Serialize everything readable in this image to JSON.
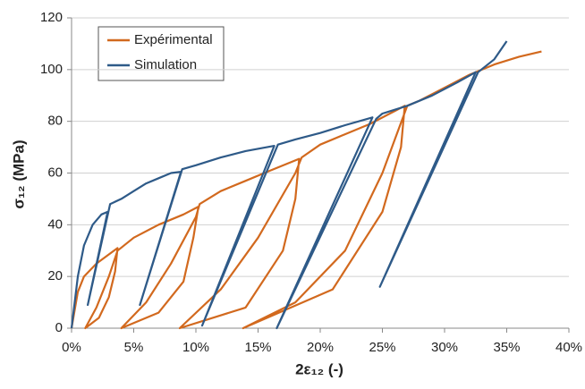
{
  "chart_data": {
    "type": "line",
    "xlabel": "2ε₁₂ (-)",
    "ylabel": "σ₁₂ (MPa)",
    "xlim": [
      0,
      40
    ],
    "ylim": [
      0,
      120
    ],
    "xticks": [
      {
        "value": 0,
        "label": "0%"
      },
      {
        "value": 5,
        "label": "5%"
      },
      {
        "value": 10,
        "label": "10%"
      },
      {
        "value": 15,
        "label": "15%"
      },
      {
        "value": 20,
        "label": "20%"
      },
      {
        "value": 25,
        "label": "25%"
      },
      {
        "value": 30,
        "label": "30%"
      },
      {
        "value": 35,
        "label": "35%"
      },
      {
        "value": 40,
        "label": "40%"
      }
    ],
    "yticks": [
      0,
      20,
      40,
      60,
      80,
      100,
      120
    ],
    "grid": true,
    "legend": "upper left",
    "series": [
      {
        "name": "Expérimental",
        "color": "#d2691e",
        "x": [
          0,
          0.5,
          1,
          2,
          3.7,
          3.5,
          3,
          2.2,
          1.1,
          2,
          3,
          3.7,
          5,
          7,
          9,
          10.2,
          9.8,
          9,
          7,
          4,
          6,
          8,
          10,
          10.3,
          12,
          14,
          16,
          18.3,
          18,
          17,
          14,
          8.7,
          12,
          15,
          18,
          18.5,
          20,
          22,
          24,
          26,
          26.8,
          26.5,
          25,
          21,
          13.8,
          18,
          22,
          25,
          27,
          28,
          30,
          32,
          34,
          36,
          37.8
        ],
        "values": [
          0,
          14,
          20,
          25,
          31,
          22,
          12,
          4,
          0,
          8,
          20,
          30,
          35,
          40,
          44,
          47,
          35,
          18,
          6,
          0,
          10,
          25,
          43,
          48,
          53,
          57,
          61,
          65.5,
          50,
          30,
          8,
          0,
          15,
          35,
          60,
          66,
          71,
          75,
          79,
          84,
          86,
          70,
          45,
          15,
          0,
          10,
          30,
          60,
          86,
          88,
          93,
          98,
          102,
          105,
          107
        ]
      },
      {
        "name": "Simulation",
        "color": "#2e5a88",
        "x": [
          0,
          0.5,
          1,
          1.7,
          2.4,
          2.9,
          1.3,
          3.1,
          4,
          5,
          6,
          7,
          8,
          8.8,
          5.5,
          8.9,
          10,
          12,
          14,
          16.3,
          10.5,
          16.6,
          18,
          20,
          22,
          24.2,
          16.5,
          24.5,
          25,
          27,
          29,
          31,
          32.5,
          24.8,
          32.7,
          34,
          35
        ],
        "values": [
          0,
          20,
          32,
          40,
          44,
          45,
          9,
          48,
          50,
          53,
          56,
          58,
          60,
          60.5,
          9,
          61.5,
          63,
          66,
          68.5,
          70.5,
          1,
          71,
          73,
          75.5,
          78.5,
          81.5,
          0,
          81,
          83,
          86,
          90,
          95,
          99,
          16,
          99,
          104,
          111
        ]
      }
    ]
  }
}
